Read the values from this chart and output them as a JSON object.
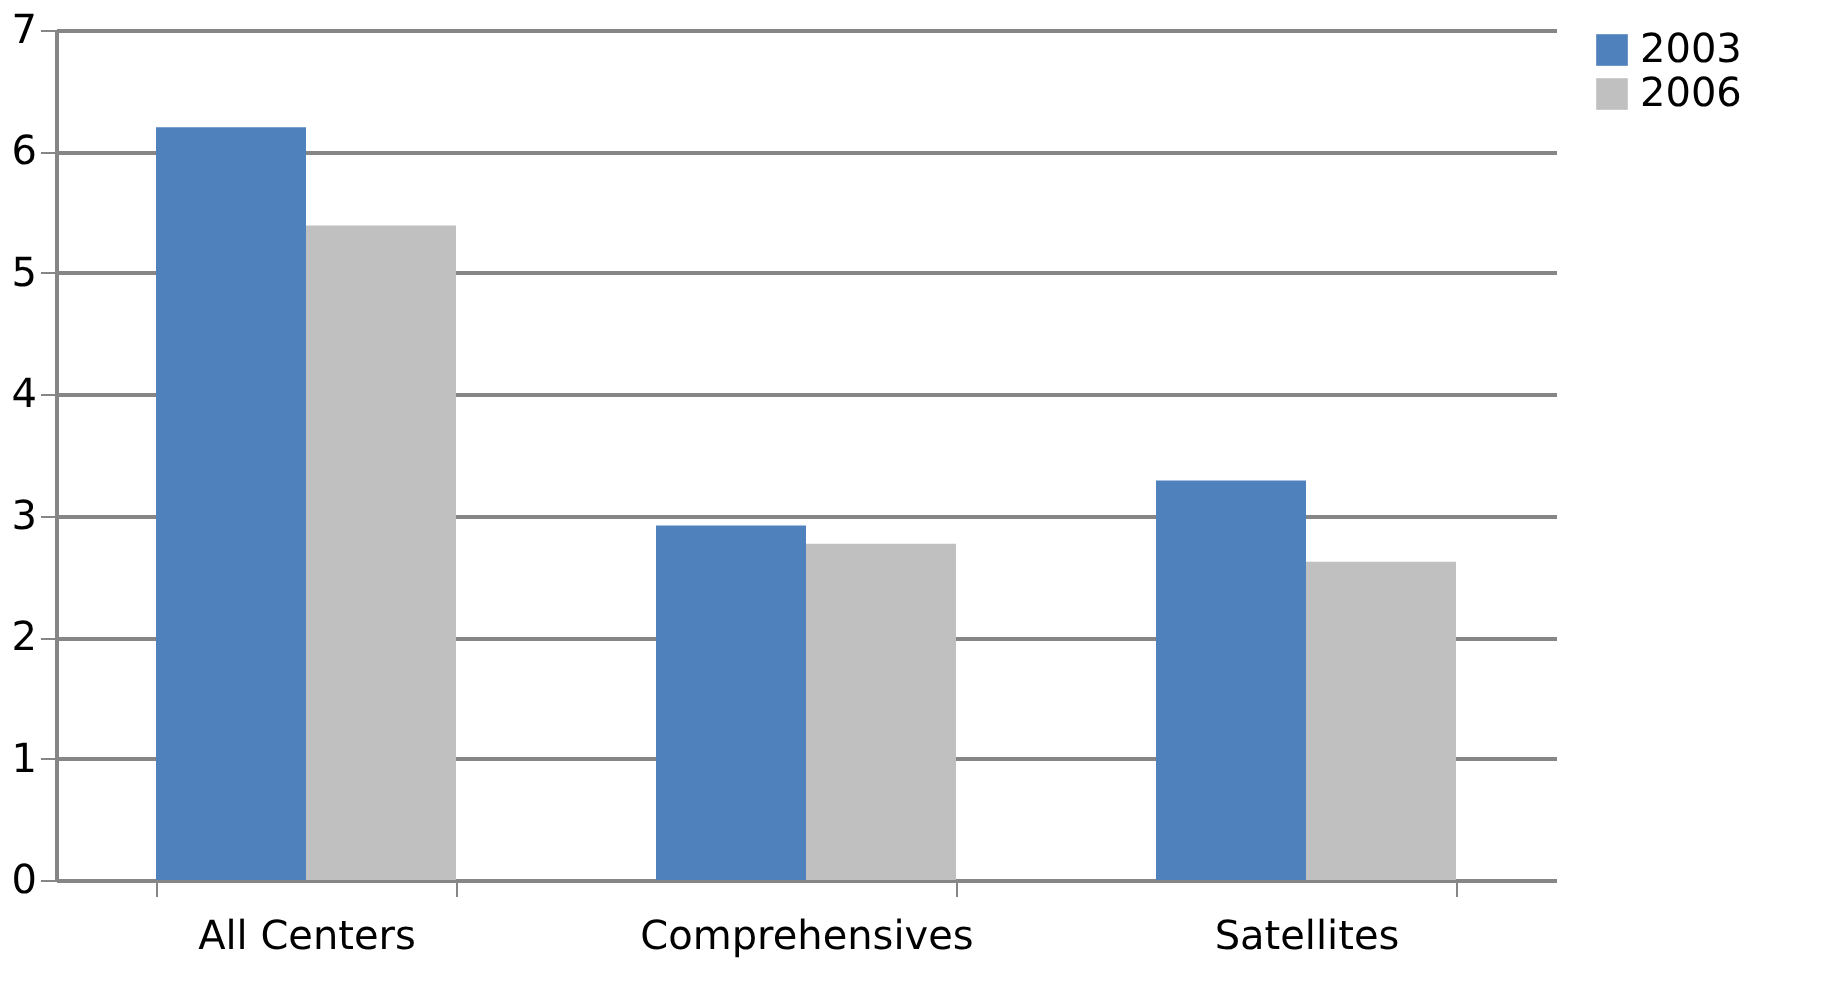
{
  "chart_data": {
    "type": "bar",
    "categories": [
      "All Centers",
      "Comprehensives",
      "Satellites"
    ],
    "series": [
      {
        "name": "2003",
        "color": "#4f81bd",
        "values": [
          6.2,
          2.92,
          3.29
        ]
      },
      {
        "name": "2006",
        "color": "#c0c0c0",
        "values": [
          5.39,
          2.77,
          2.62
        ]
      }
    ],
    "ylim": [
      0,
      7
    ],
    "yticks": [
      0,
      1,
      2,
      3,
      4,
      5,
      6,
      7
    ],
    "grid": "y",
    "legend": "right"
  }
}
